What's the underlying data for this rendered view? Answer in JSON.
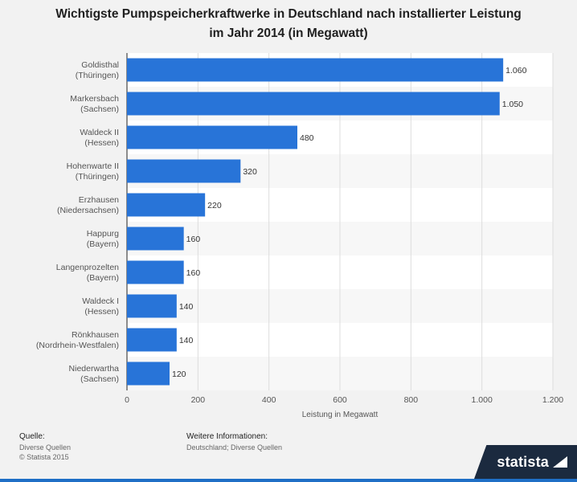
{
  "title_line1": "Wichtigste Pumpspeicherkraftwerke in Deutschland nach installierter Leistung",
  "title_line2": "im Jahr 2014 (in Megawatt)",
  "chart_data": {
    "type": "bar",
    "orientation": "horizontal",
    "categories": [
      [
        "Goldisthal",
        "(Thüringen)"
      ],
      [
        "Markersbach",
        "(Sachsen)"
      ],
      [
        "Waldeck II",
        "(Hessen)"
      ],
      [
        "Hohenwarte II",
        "(Thüringen)"
      ],
      [
        "Erzhausen",
        "(Niedersachsen)"
      ],
      [
        "Happurg",
        "(Bayern)"
      ],
      [
        "Langenprozelten",
        "(Bayern)"
      ],
      [
        "Waldeck I",
        "(Hessen)"
      ],
      [
        "Rönkhausen",
        "(Nordrhein-Westfalen)"
      ],
      [
        "Niederwartha",
        "(Sachsen)"
      ]
    ],
    "values": [
      1060,
      1050,
      480,
      320,
      220,
      160,
      160,
      140,
      140,
      120
    ],
    "value_labels": [
      "1.060",
      "1.050",
      "480",
      "320",
      "220",
      "160",
      "160",
      "140",
      "140",
      "120"
    ],
    "xlim": [
      0,
      1200
    ],
    "x_ticks": [
      0,
      200,
      400,
      600,
      800,
      1000,
      1200
    ],
    "x_tick_labels": [
      "0",
      "200",
      "400",
      "600",
      "800",
      "1.000",
      "1.200"
    ],
    "xlabel": "Leistung in Megawatt",
    "grid": true,
    "colors": {
      "bar": "#2874d8",
      "band": "#f7f7f7",
      "plot_bg": "#ffffff",
      "grid": "#dddddd"
    }
  },
  "footer": {
    "source_label": "Quelle:",
    "source_lines": [
      "Diverse Quellen",
      "© Statista 2015"
    ],
    "info_label": "Weitere Informationen:",
    "info_lines": [
      "Deutschland; Diverse Quellen"
    ]
  },
  "brand": {
    "name": "statista",
    "icon": "statista-logo-icon"
  }
}
